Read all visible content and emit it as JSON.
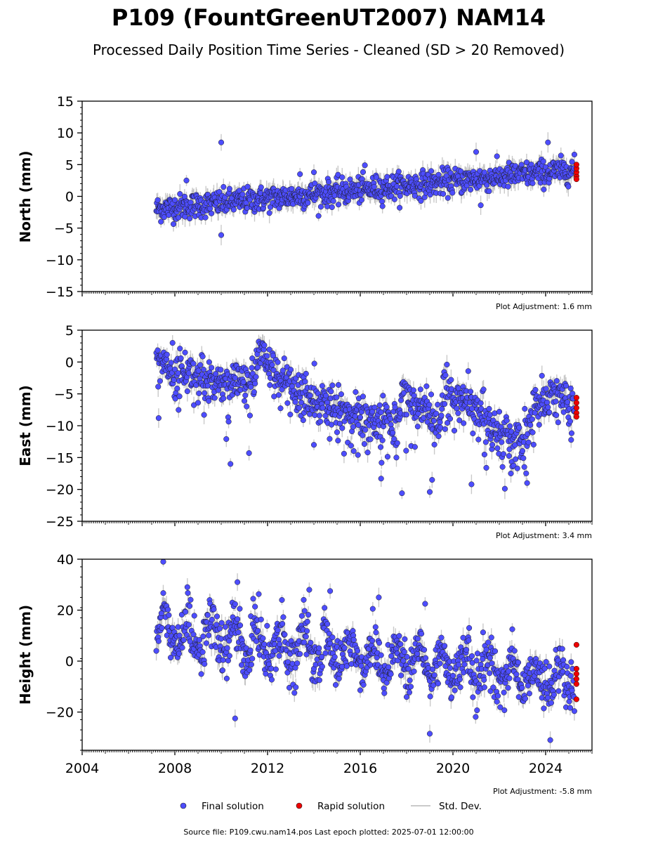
{
  "figure": {
    "title": "P109 (FountGreenUT2007) NAM14",
    "subtitle": "Processed Daily Position Time Series - Cleaned (SD > 20 Removed)",
    "footer": "Source file: P109.cwu.nam14.pos  Last epoch plotted: 2025-07-01 12:00:00"
  },
  "legend": {
    "location": "bottom-center",
    "final": "Final solution",
    "rapid": "Rapid solution",
    "std": "Std. Dev."
  },
  "colors": {
    "final": "#4d4dff",
    "rapid": "#ee0000",
    "std_dev": "#b8b8b8",
    "marker_edge": "#1a1a1a",
    "axis": "#000000"
  },
  "chart_data": [
    {
      "type": "scatter",
      "panel": "north",
      "ylabel": "North (mm)",
      "adjustment": "Plot Adjustment: 1.6 mm",
      "xlim": [
        2004.0,
        2026.0
      ],
      "ylim": [
        -15,
        15
      ],
      "y_ticks": [
        -15,
        -10,
        -5,
        0,
        5,
        10,
        15
      ],
      "y_tick_labels": [
        "−15",
        "−10",
        "−5",
        "0",
        "5",
        "10",
        "15"
      ],
      "grid": false,
      "trend": [
        [
          2007.2,
          -2.0
        ],
        [
          2025.3,
          4.2
        ]
      ],
      "noise_sd": 1.0,
      "outliers": [
        [
          2010.0,
          8.5
        ],
        [
          2010.0,
          -6.1
        ],
        [
          2021.0,
          7.0
        ],
        [
          2024.1,
          8.5
        ],
        [
          2021.2,
          -1.4
        ],
        [
          2016.2,
          4.9
        ],
        [
          2013.4,
          3.5
        ],
        [
          2014.0,
          3.8
        ],
        [
          2008.5,
          2.5
        ]
      ],
      "rapid": [
        [
          2025.3,
          3.2
        ],
        [
          2025.3,
          3.8
        ],
        [
          2025.3,
          4.4
        ],
        [
          2025.3,
          5.0
        ],
        [
          2025.3,
          2.7
        ]
      ]
    },
    {
      "type": "scatter",
      "panel": "east",
      "ylabel": "East (mm)",
      "adjustment": "Plot Adjustment: 3.4 mm",
      "xlim": [
        2004.0,
        2026.0
      ],
      "ylim": [
        -25,
        5
      ],
      "y_ticks": [
        -25,
        -20,
        -15,
        -10,
        -5,
        0,
        5
      ],
      "y_tick_labels": [
        "−25",
        "−20",
        "−15",
        "−10",
        "−5",
        "0",
        "5"
      ],
      "grid": false,
      "trend_points": [
        [
          2007.2,
          0.5
        ],
        [
          2008.0,
          -1.0
        ],
        [
          2009.0,
          -2.0
        ],
        [
          2010.0,
          -3.0
        ],
        [
          2011.3,
          -3.5
        ],
        [
          2011.6,
          1.5
        ],
        [
          2012.5,
          -2.5
        ],
        [
          2013.5,
          -5.0
        ],
        [
          2015.0,
          -7.5
        ],
        [
          2016.5,
          -9.0
        ],
        [
          2017.6,
          -9.5
        ],
        [
          2017.8,
          -5.0
        ],
        [
          2019.0,
          -8.0
        ],
        [
          2019.4,
          -10.0
        ],
        [
          2019.6,
          -4.5
        ],
        [
          2021.0,
          -7.5
        ],
        [
          2022.0,
          -10.5
        ],
        [
          2023.0,
          -13.0
        ],
        [
          2023.2,
          -11.0
        ],
        [
          2023.6,
          -6.0
        ],
        [
          2024.0,
          -7.5
        ],
        [
          2024.3,
          -4.0
        ],
        [
          2025.3,
          -8.0
        ]
      ],
      "noise_sd": 1.6,
      "outliers": [
        [
          2010.4,
          -16.0
        ],
        [
          2011.2,
          -14.3
        ],
        [
          2017.8,
          -20.6
        ],
        [
          2019.0,
          -20.4
        ],
        [
          2019.1,
          -18.5
        ],
        [
          2020.8,
          -19.2
        ],
        [
          2022.5,
          -17.5
        ],
        [
          2023.2,
          -19.0
        ],
        [
          2016.9,
          -18.3
        ],
        [
          2007.3,
          -8.8
        ],
        [
          2014.0,
          -13.0
        ]
      ],
      "rapid": [
        [
          2025.3,
          -5.6
        ],
        [
          2025.3,
          -6.4
        ],
        [
          2025.3,
          -7.2
        ],
        [
          2025.3,
          -8.0
        ],
        [
          2025.3,
          -8.6
        ]
      ]
    },
    {
      "type": "scatter",
      "panel": "height",
      "ylabel": "Height (mm)",
      "adjustment": "Plot Adjustment: -5.8 mm",
      "xlim": [
        2004.0,
        2026.0
      ],
      "ylim": [
        -35,
        40
      ],
      "y_ticks": [
        -20,
        0,
        20,
        40
      ],
      "y_tick_labels": [
        "−20",
        "0",
        "20",
        "40"
      ],
      "x_ticks": [
        2004,
        2008,
        2012,
        2016,
        2020,
        2024
      ],
      "x_tick_labels": [
        "2004",
        "2008",
        "2012",
        "2016",
        "2020",
        "2024"
      ],
      "grid": false,
      "trend": [
        [
          2007.2,
          12.0
        ],
        [
          2025.3,
          -8.0
        ]
      ],
      "seasonal_amp": 6.0,
      "noise_sd": 5.0,
      "outliers": [
        [
          2007.5,
          39.0
        ],
        [
          2010.6,
          -22.5
        ],
        [
          2010.7,
          31.0
        ],
        [
          2019.0,
          -28.5
        ],
        [
          2024.2,
          -31.0
        ],
        [
          2016.8,
          25.0
        ],
        [
          2013.8,
          28.0
        ],
        [
          2014.7,
          27.5
        ],
        [
          2018.8,
          22.5
        ]
      ],
      "rapid": [
        [
          2025.3,
          6.4
        ],
        [
          2025.3,
          -3.0
        ],
        [
          2025.3,
          -5.0
        ],
        [
          2025.3,
          -7.0
        ],
        [
          2025.3,
          -9.0
        ],
        [
          2025.3,
          -15.0
        ]
      ]
    }
  ]
}
